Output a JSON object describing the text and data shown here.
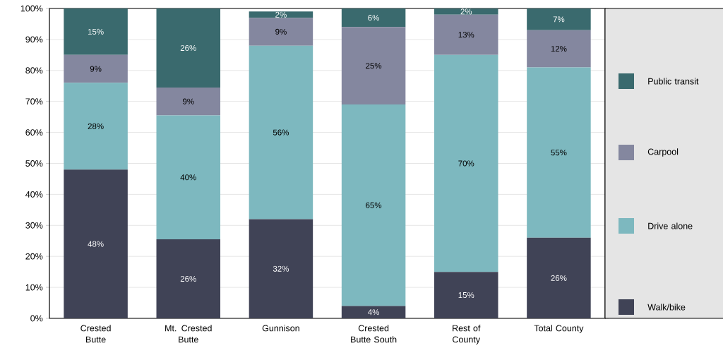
{
  "chart_data": {
    "type": "bar",
    "stacked": true,
    "categories": [
      "Crested Butte",
      "Mt. Crested Butte",
      "Gunnison",
      "Crested Butte South",
      "Rest of County",
      "Total County"
    ],
    "series": [
      {
        "name": "Walk/bike",
        "color": "#404356",
        "values": [
          48,
          25.5,
          32,
          4,
          15,
          26
        ],
        "value_labels": [
          "48%",
          "26%",
          "32%",
          "4%",
          "15%",
          "26%"
        ]
      },
      {
        "name": "Drive alone",
        "color": "#7db8bf",
        "values": [
          28,
          40,
          56,
          65,
          70,
          55
        ],
        "value_labels": [
          "28%",
          "40%",
          "56%",
          "65%",
          "70%",
          "55%"
        ]
      },
      {
        "name": "Carpool",
        "color": "#84879f",
        "values": [
          9,
          9,
          9,
          25,
          13,
          12
        ],
        "value_labels": [
          "9%",
          "9%",
          "9%",
          "25%",
          "13%",
          "12%"
        ]
      },
      {
        "name": "Public transit",
        "color": "#3a6a6e",
        "values": [
          15,
          25.5,
          2,
          6,
          2,
          7
        ],
        "value_labels": [
          "15%",
          "26%",
          "2%",
          "6%",
          "2%",
          "7%"
        ]
      }
    ],
    "ylim": [
      0,
      100
    ],
    "yticks": [
      {
        "value": 0,
        "label": "0%"
      },
      {
        "value": 10,
        "label": "10%"
      },
      {
        "value": 20,
        "label": "20%"
      },
      {
        "value": 30,
        "label": "30%"
      },
      {
        "value": 40,
        "label": "40%"
      },
      {
        "value": 50,
        "label": "50%"
      },
      {
        "value": 60,
        "label": "60%"
      },
      {
        "value": 70,
        "label": "70%"
      },
      {
        "value": 80,
        "label": "80%"
      },
      {
        "value": 90,
        "label": "90%"
      },
      {
        "value": 100,
        "label": "100%"
      }
    ],
    "grid": "y",
    "legend": "right"
  }
}
